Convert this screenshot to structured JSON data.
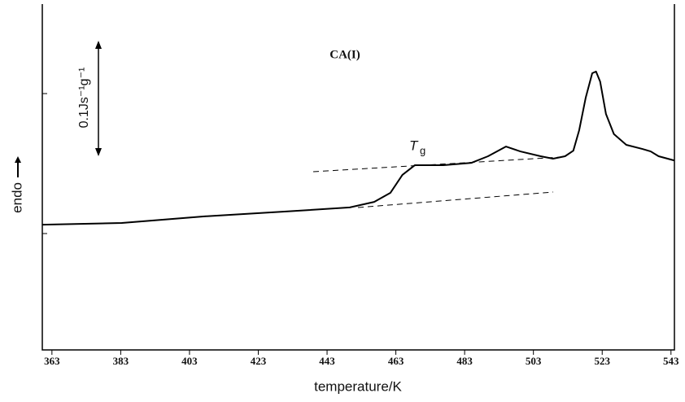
{
  "chart_data": {
    "type": "line",
    "title": "CA(I)",
    "xlabel": "temperature/K",
    "ylabel": "endo",
    "scale_label": "0.1Js⁻¹g⁻¹",
    "annotation": "T",
    "annotation_subscript": "g",
    "x": [
      360.2,
      383.3,
      407.0,
      430.6,
      449.6,
      456.7,
      461.4,
      464.9,
      468.5,
      476.8,
      485.0,
      489.8,
      495.0,
      499.2,
      505.1,
      508.7,
      512.2,
      514.6,
      516.3,
      518.2,
      520.1,
      521.2,
      522.4,
      524.1,
      526.4,
      530.0,
      534.7,
      537.1,
      539.4,
      543.9
    ],
    "series": [
      {
        "color": "#000000",
        "values": [
          36.2,
          36.7,
          38.6,
          40.0,
          41.2,
          42.8,
          45.4,
          50.6,
          53.4,
          53.4,
          54.1,
          56.0,
          58.8,
          57.4,
          56.0,
          55.3,
          56.0,
          57.6,
          63.5,
          72.9,
          80.0,
          80.5,
          77.6,
          68.2,
          62.4,
          59.3,
          58.1,
          57.4,
          56.0,
          54.8
        ]
      }
    ],
    "xlim": [
      360.2,
      544
    ],
    "ylim": [
      0,
      100
    ],
    "xticks": [
      363,
      383,
      403,
      423,
      443,
      463,
      483,
      503,
      523,
      543
    ]
  }
}
